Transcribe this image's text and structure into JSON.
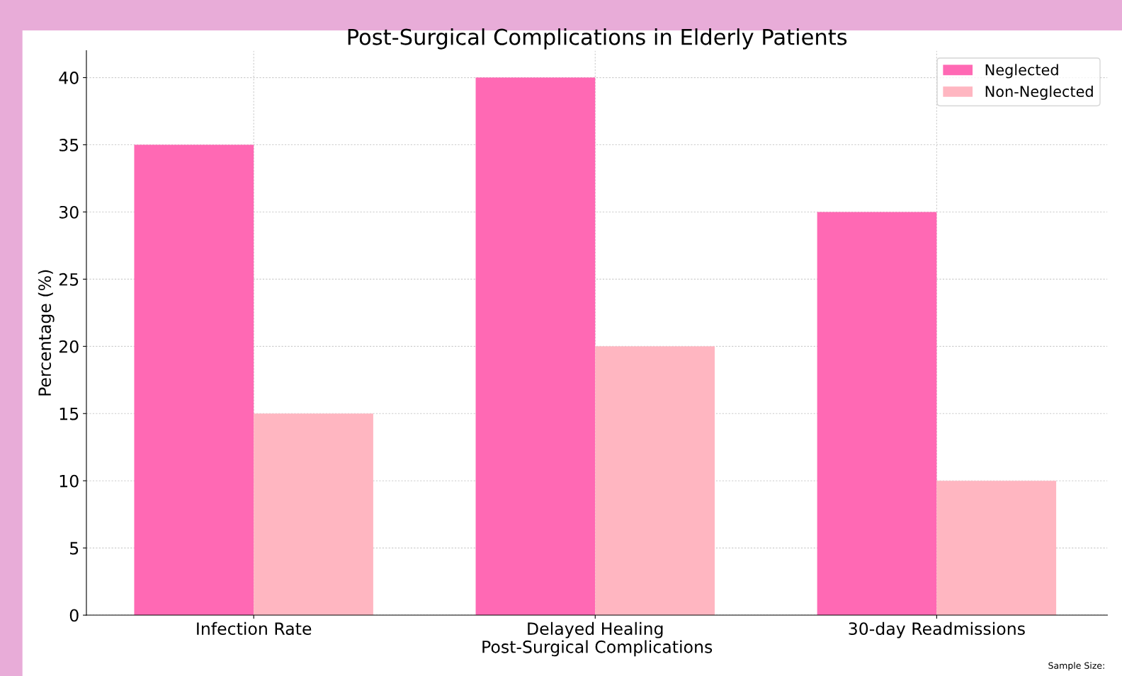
{
  "chart_data": {
    "type": "bar",
    "title": "Post-Surgical Complications in Elderly Patients",
    "xlabel": "Post-Surgical Complications",
    "ylabel": "Percentage (%)",
    "categories": [
      "Infection Rate",
      "Delayed Healing",
      "30-day Readmissions"
    ],
    "series": [
      {
        "name": "Neglected",
        "color": "#ff69b4",
        "values": [
          35,
          40,
          30
        ]
      },
      {
        "name": "Non-Neglected",
        "color": "#ffb6c1",
        "values": [
          15,
          20,
          10
        ]
      }
    ],
    "ylim": [
      0,
      42
    ],
    "yticks": [
      0,
      5,
      10,
      15,
      20,
      25,
      30,
      35,
      40
    ],
    "grid": true,
    "legend": "top right",
    "annotations": [
      "Sample Size:"
    ]
  }
}
